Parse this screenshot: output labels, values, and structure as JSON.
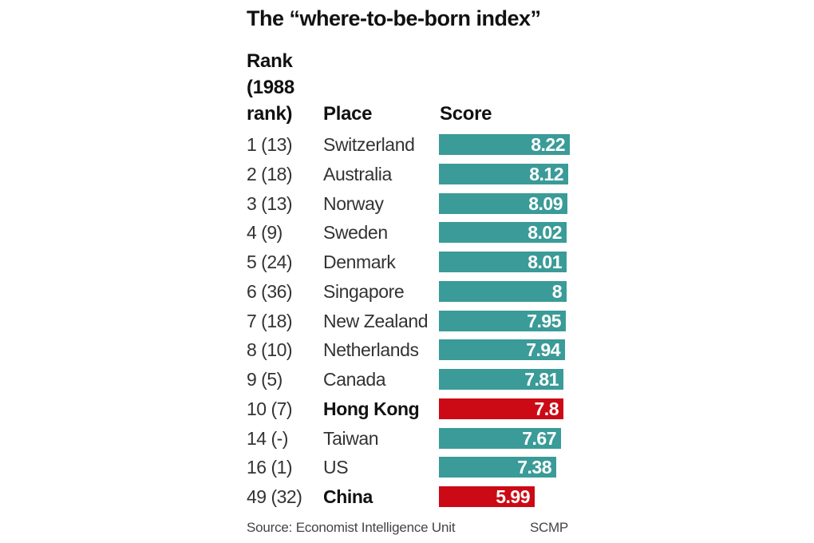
{
  "chart": {
    "title": "The “where-to-be-born index”",
    "headers": {
      "rank_line1": "Rank",
      "rank_line2": "(1988",
      "rank_line3": "rank)",
      "place": "Place",
      "score": "Score"
    },
    "rows": [
      {
        "rank": "1 (13)",
        "place": "Switzerland",
        "score": "8.22",
        "highlight": false
      },
      {
        "rank": "2 (18)",
        "place": "Australia",
        "score": "8.12",
        "highlight": false
      },
      {
        "rank": "3 (13)",
        "place": "Norway",
        "score": "8.09",
        "highlight": false
      },
      {
        "rank": "4 (9)",
        "place": "Sweden",
        "score": "8.02",
        "highlight": false
      },
      {
        "rank": "5 (24)",
        "place": "Denmark",
        "score": "8.01",
        "highlight": false
      },
      {
        "rank": "6 (36)",
        "place": "Singapore",
        "score": "8",
        "highlight": false
      },
      {
        "rank": "7 (18)",
        "place": "New Zealand",
        "score": "7.95",
        "highlight": false
      },
      {
        "rank": "8 (10)",
        "place": "Netherlands",
        "score": "7.94",
        "highlight": false
      },
      {
        "rank": "9 (5)",
        "place": "Canada",
        "score": "7.81",
        "highlight": false
      },
      {
        "rank": "10 (7)",
        "place": "Hong Kong",
        "score": "7.8",
        "highlight": true
      },
      {
        "rank": "14 (-)",
        "place": "Taiwan",
        "score": "7.67",
        "highlight": false
      },
      {
        "rank": "16 (1)",
        "place": "US",
        "score": "7.38",
        "highlight": false
      },
      {
        "rank": "49 (32)",
        "place": "China",
        "score": "5.99",
        "highlight": true
      }
    ],
    "footer": {
      "source": "Source: Economist Intelligence Unit",
      "credit": "SCMP"
    },
    "colors": {
      "bar_default": "#3a9b98",
      "bar_highlight": "#cc0a15"
    }
  },
  "chart_data": {
    "type": "bar",
    "orientation": "horizontal",
    "title": "The “where-to-be-born index”",
    "xlabel": "Score",
    "ylabel": "Place",
    "categories": [
      "Switzerland",
      "Australia",
      "Norway",
      "Sweden",
      "Denmark",
      "Singapore",
      "New Zealand",
      "Netherlands",
      "Canada",
      "Hong Kong",
      "Taiwan",
      "US",
      "China"
    ],
    "values": [
      8.22,
      8.12,
      8.09,
      8.02,
      8.01,
      8.0,
      7.95,
      7.94,
      7.81,
      7.8,
      7.67,
      7.38,
      5.99
    ],
    "rank_2013": [
      1,
      2,
      3,
      4,
      5,
      6,
      7,
      8,
      9,
      10,
      14,
      16,
      49
    ],
    "rank_1988": [
      "13",
      "18",
      "13",
      "9",
      "24",
      "36",
      "18",
      "10",
      "5",
      "7",
      "-",
      "1",
      "32"
    ],
    "highlighted": [
      "Hong Kong",
      "China"
    ],
    "grid": false,
    "legend": null,
    "source": "Source: Economist Intelligence Unit",
    "credit": "SCMP"
  }
}
